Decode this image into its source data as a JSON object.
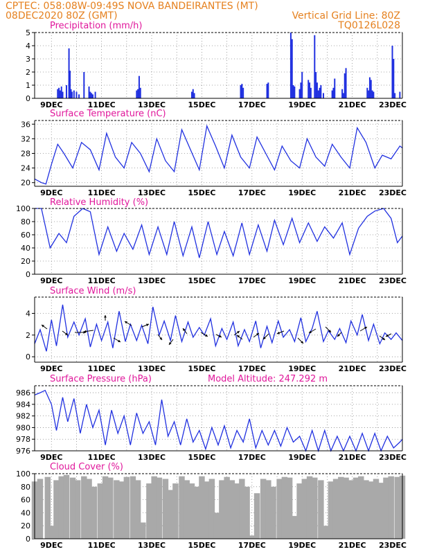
{
  "header": {
    "left_line1": "CPTEC:   058:08W-09:49S   NOVA BANDEIRANTES (MT)",
    "left_line2": "08DEC2020 80Z (GMT)",
    "right_line2": "Vertical Grid Line: 80Z",
    "right_line3": "TQ0126L028"
  },
  "model_altitude": "Model Altitude: 247.292 m",
  "colors": {
    "header": "#e5801e",
    "panel_title": "#e0179b",
    "series": "#2030e0",
    "cloud": "#a9a9a9"
  },
  "chart_data": [
    {
      "id": "precip",
      "type": "bar",
      "title": "Precipitation (mm/h)",
      "ylim": [
        0,
        5
      ],
      "yticks": [
        0,
        1,
        2,
        3,
        4,
        5
      ],
      "xlim": [
        8.33,
        23.0
      ],
      "xticks": [
        "9DEC",
        "11DEC",
        "13DEC",
        "15DEC",
        "17DEC",
        "19DEC",
        "21DEC",
        "23DEC"
      ],
      "bar_width_days": 0.042,
      "x": [
        9.25,
        9.3,
        9.35,
        9.4,
        9.45,
        9.6,
        9.7,
        9.74,
        9.78,
        9.82,
        9.9,
        10.0,
        10.1,
        10.3,
        10.5,
        10.55,
        10.6,
        10.65,
        10.75,
        12.4,
        12.45,
        12.5,
        12.55,
        14.6,
        14.65,
        14.7,
        16.55,
        16.6,
        16.65,
        17.6,
        17.65,
        18.55,
        18.6,
        18.65,
        18.7,
        18.9,
        18.95,
        19.0,
        19.25,
        19.3,
        19.35,
        19.5,
        19.55,
        19.6,
        19.65,
        19.7,
        19.75,
        19.85,
        20.2,
        20.25,
        20.3,
        20.6,
        20.65,
        20.7,
        20.75,
        21.6,
        21.65,
        21.7,
        21.75,
        21.8,
        21.85,
        22.6,
        22.65,
        22.7,
        22.9
      ]
    },
    {
      "id": "temp",
      "type": "line",
      "title": "Surface Temperature (nC)",
      "ylim": [
        19,
        37
      ],
      "yticks": [
        20,
        24,
        28,
        32,
        36
      ],
      "xlim": [
        8.33,
        23.0
      ],
      "xticks": [
        "9DEC",
        "11DEC",
        "13DEC",
        "15DEC",
        "17DEC",
        "19DEC",
        "21DEC",
        "23DEC"
      ],
      "x": [
        8.33,
        8.6,
        8.78,
        9.0,
        9.25,
        9.5,
        9.85,
        10.2,
        10.55,
        10.9,
        11.2,
        11.55,
        11.9,
        12.2,
        12.55,
        12.9,
        13.2,
        13.55,
        13.9,
        14.2,
        14.55,
        14.9,
        15.2,
        15.55,
        15.9,
        16.2,
        16.55,
        16.9,
        17.2,
        17.55,
        17.9,
        18.2,
        18.55,
        18.9,
        19.2,
        19.55,
        19.9,
        20.2,
        20.55,
        20.9,
        21.2,
        21.55,
        21.9,
        22.2,
        22.55,
        22.9,
        23.0
      ],
      "y": [
        21.0,
        20.0,
        19.6,
        25.0,
        30.5,
        28.0,
        24.0,
        31.0,
        29.0,
        23.5,
        33.5,
        27.0,
        24.0,
        31.0,
        28.0,
        23.0,
        32.0,
        26.0,
        23.0,
        34.5,
        29.0,
        23.5,
        35.5,
        30.0,
        24.0,
        33.0,
        27.0,
        24.0,
        32.5,
        28.0,
        23.5,
        30.0,
        26.0,
        24.0,
        32.0,
        27.0,
        24.5,
        30.5,
        27.0,
        24.0,
        35.0,
        31.0,
        24.0,
        27.5,
        26.5,
        30.0,
        29.5
      ]
    },
    {
      "id": "rh",
      "type": "line",
      "title": "Relative Humidity (%)",
      "ylim": [
        0,
        100
      ],
      "yticks": [
        0,
        20,
        40,
        60,
        80,
        100
      ],
      "xlim": [
        8.33,
        23.0
      ],
      "xticks": [
        "9DEC",
        "11DEC",
        "13DEC",
        "15DEC",
        "17DEC",
        "19DEC",
        "21DEC",
        "23DEC"
      ],
      "x": [
        8.33,
        8.6,
        8.95,
        9.3,
        9.6,
        9.9,
        10.25,
        10.55,
        10.9,
        11.25,
        11.6,
        11.9,
        12.25,
        12.6,
        12.9,
        13.25,
        13.6,
        13.9,
        14.25,
        14.6,
        14.9,
        15.25,
        15.6,
        15.9,
        16.25,
        16.6,
        16.9,
        17.25,
        17.6,
        17.9,
        18.25,
        18.6,
        18.9,
        19.25,
        19.6,
        19.9,
        20.25,
        20.6,
        20.9,
        21.25,
        21.6,
        21.9,
        22.25,
        22.55,
        22.8,
        23.0
      ],
      "y": [
        100,
        100,
        40,
        62,
        48,
        88,
        100,
        95,
        30,
        72,
        35,
        62,
        38,
        75,
        30,
        72,
        30,
        80,
        28,
        72,
        25,
        80,
        30,
        65,
        28,
        78,
        30,
        75,
        35,
        82,
        45,
        85,
        48,
        78,
        50,
        72,
        55,
        78,
        30,
        70,
        88,
        96,
        100,
        85,
        48,
        58
      ]
    },
    {
      "id": "wind",
      "type": "line",
      "title": "Surface Wind (m/s)",
      "ylim": [
        -0.5,
        5.5
      ],
      "yticks": [
        0,
        2,
        4
      ],
      "xlim": [
        8.33,
        23.0
      ],
      "xticks": [
        "9DEC",
        "11DEC",
        "13DEC",
        "15DEC",
        "17DEC",
        "19DEC",
        "21DEC",
        "23DEC"
      ],
      "x": [
        8.33,
        8.55,
        8.8,
        9.0,
        9.2,
        9.45,
        9.65,
        9.9,
        10.1,
        10.35,
        10.55,
        10.8,
        11.0,
        11.25,
        11.45,
        11.7,
        11.95,
        12.15,
        12.4,
        12.6,
        12.85,
        13.05,
        13.3,
        13.5,
        13.75,
        13.95,
        14.2,
        14.45,
        14.65,
        14.9,
        15.1,
        15.35,
        15.55,
        15.8,
        16.0,
        16.25,
        16.45,
        16.7,
        16.9,
        17.15,
        17.35,
        17.6,
        17.8,
        18.05,
        18.25,
        18.5,
        18.7,
        18.95,
        19.15,
        19.4,
        19.6,
        19.85,
        20.05,
        20.3,
        20.5,
        20.75,
        20.95,
        21.2,
        21.4,
        21.65,
        21.85,
        22.1,
        22.3,
        22.55,
        22.75,
        23.0
      ],
      "y": [
        1.2,
        2.5,
        0.5,
        3.4,
        1.0,
        4.8,
        1.8,
        3.2,
        2.0,
        3.5,
        0.9,
        3.0,
        1.5,
        3.2,
        0.8,
        4.2,
        1.4,
        3.0,
        1.5,
        2.9,
        1.2,
        4.6,
        2.0,
        3.3,
        1.5,
        3.8,
        1.4,
        3.2,
        1.8,
        2.7,
        2.0,
        3.5,
        1.0,
        2.6,
        1.6,
        3.2,
        1.0,
        2.5,
        1.4,
        3.3,
        0.8,
        2.8,
        1.3,
        3.3,
        1.8,
        2.5,
        1.4,
        3.6,
        1.4,
        2.6,
        4.2,
        1.4,
        2.4,
        1.6,
        2.6,
        1.3,
        3.3,
        2.0,
        3.9,
        1.5,
        3.0,
        1.2,
        2.2,
        1.6,
        2.2,
        1.5
      ]
    },
    {
      "id": "pressure",
      "type": "line",
      "title": "Surface Pressure (hPa)",
      "ylim": [
        976,
        987.2
      ],
      "yticks": [
        976,
        978,
        980,
        982,
        984,
        986
      ],
      "xlim": [
        8.33,
        23.0
      ],
      "xticks": [
        "9DEC",
        "11DEC",
        "13DEC",
        "15DEC",
        "17DEC",
        "19DEC",
        "21DEC",
        "23DEC"
      ],
      "x": [
        8.33,
        8.55,
        8.75,
        9.0,
        9.2,
        9.45,
        9.65,
        9.9,
        10.15,
        10.4,
        10.65,
        10.9,
        11.15,
        11.4,
        11.65,
        11.9,
        12.15,
        12.4,
        12.65,
        12.9,
        13.15,
        13.4,
        13.65,
        13.9,
        14.15,
        14.4,
        14.65,
        14.9,
        15.15,
        15.4,
        15.65,
        15.9,
        16.15,
        16.4,
        16.65,
        16.9,
        17.15,
        17.4,
        17.65,
        17.9,
        18.15,
        18.4,
        18.65,
        18.9,
        19.15,
        19.4,
        19.65,
        19.9,
        20.15,
        20.4,
        20.65,
        20.9,
        21.15,
        21.4,
        21.65,
        21.9,
        22.15,
        22.4,
        22.65,
        22.9,
        23.0
      ],
      "y": [
        985.6,
        986.0,
        986.4,
        984.0,
        979.5,
        985.2,
        981.0,
        985.0,
        979.0,
        984.0,
        980.0,
        983.0,
        977.0,
        983.0,
        979.0,
        982.0,
        977.0,
        982.5,
        979.0,
        981.0,
        977.0,
        984.8,
        978.5,
        981.0,
        977.0,
        981.5,
        977.5,
        979.5,
        976.3,
        980.0,
        977.0,
        980.3,
        976.5,
        979.5,
        977.5,
        981.5,
        976.5,
        979.5,
        977.0,
        979.5,
        976.8,
        980.0,
        977.5,
        978.5,
        976.0,
        979.5,
        976.0,
        979.5,
        976.0,
        978.5,
        976.0,
        978.5,
        976.0,
        979.0,
        976.0,
        979.0,
        976.0,
        978.5,
        976.5,
        977.5,
        978.0
      ]
    },
    {
      "id": "cloud",
      "type": "area",
      "title": "Cloud Cover (%)",
      "ylim": [
        0,
        100
      ],
      "yticks": [
        0,
        20,
        40,
        60,
        80,
        100
      ],
      "xlim": [
        8.33,
        23.0
      ],
      "xticks": [
        "9DEC",
        "11DEC",
        "13DEC",
        "15DEC",
        "17DEC",
        "19DEC",
        "21DEC",
        "23DEC"
      ],
      "x": [
        8.33,
        8.55,
        8.85,
        9.05,
        9.2,
        9.4,
        9.6,
        9.85,
        10.05,
        10.3,
        10.5,
        10.7,
        10.95,
        11.15,
        11.35,
        11.6,
        11.8,
        12.0,
        12.25,
        12.45,
        12.65,
        12.9,
        13.1,
        13.3,
        13.55,
        13.75,
        13.95,
        14.2,
        14.4,
        14.6,
        14.8,
        15.0,
        15.2,
        15.4,
        15.6,
        15.8,
        16.0,
        16.2,
        16.4,
        16.6,
        16.8,
        17.0,
        17.2,
        17.45,
        17.65,
        17.85,
        18.1,
        18.3,
        18.5,
        18.7,
        18.9,
        19.1,
        19.3,
        19.5,
        19.75,
        19.95,
        20.15,
        20.35,
        20.55,
        20.75,
        20.95,
        21.15,
        21.35,
        21.55,
        21.75,
        21.95,
        22.15,
        22.35,
        22.55,
        22.8,
        23.0
      ],
      "y": [
        88,
        92,
        95,
        20,
        90,
        96,
        98,
        94,
        90,
        96,
        92,
        80,
        85,
        96,
        94,
        90,
        88,
        95,
        96,
        90,
        25,
        85,
        96,
        94,
        92,
        75,
        85,
        96,
        90,
        85,
        80,
        96,
        88,
        92,
        40,
        90,
        95,
        90,
        85,
        92,
        80,
        5,
        70,
        92,
        90,
        80,
        92,
        95,
        94,
        35,
        85,
        92,
        96,
        94,
        90,
        20,
        88,
        92,
        95,
        94,
        90,
        94,
        96,
        90,
        88,
        92,
        86,
        94,
        96,
        95,
        97
      ]
    }
  ]
}
